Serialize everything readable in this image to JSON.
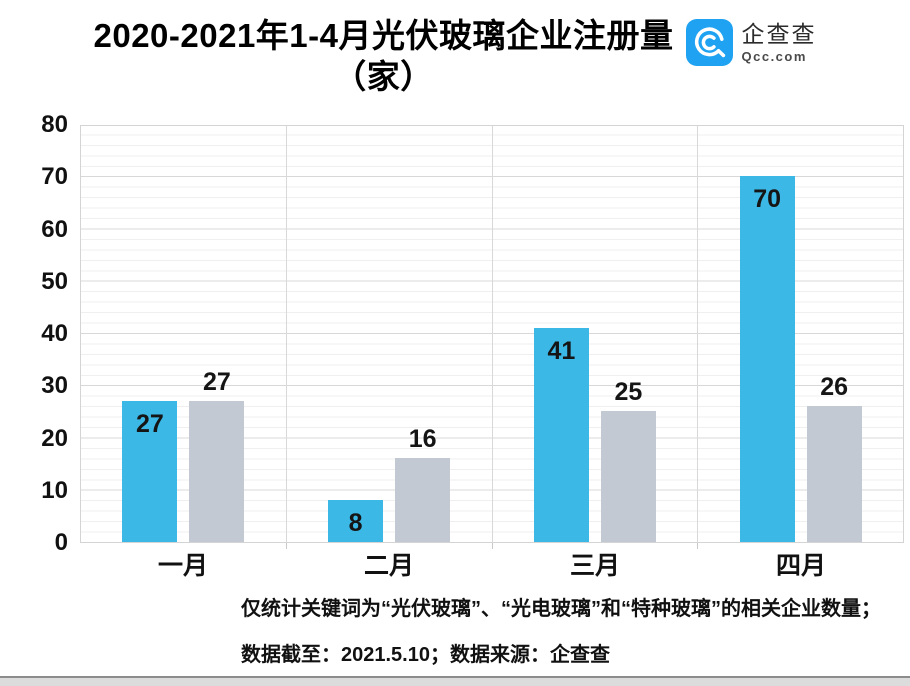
{
  "header": {
    "title_line1": "2020-2021年1-4月光伏玻璃企业注册量",
    "title_line2": "（家）",
    "logo": {
      "name": "企查查",
      "domain": "Qcc.com",
      "brand_color": "#1ea2f1"
    }
  },
  "chart_data": {
    "type": "bar",
    "title": "2020-2021年1-4月光伏玻璃企业注册量（家）",
    "categories": [
      "一月",
      "二月",
      "三月",
      "四月"
    ],
    "series": [
      {
        "name": "series-1",
        "color": "#3bb8e6",
        "values": [
          27,
          8,
          41,
          70
        ],
        "label_position": "inside-top"
      },
      {
        "name": "series-2",
        "color": "#c3c9d2",
        "values": [
          27,
          16,
          25,
          26
        ],
        "label_position": "above"
      }
    ],
    "xlabel": "",
    "ylabel": "",
    "ylim": [
      0,
      80
    ],
    "y_tick_step": 10,
    "minor_grid_step": 2,
    "grid": true,
    "legend_position": "none"
  },
  "footnote": {
    "line1": "仅统计关键词为“光伏玻璃”、“光电玻璃”和“特种玻璃”的相关企业数量；",
    "line2": "数据截至：2021.5.10；数据来源：企查查"
  }
}
